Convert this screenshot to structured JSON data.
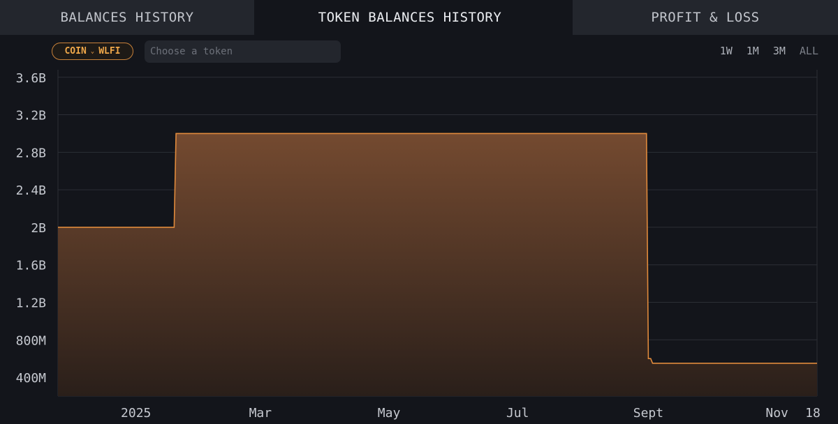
{
  "tabs": [
    {
      "label": "BALANCES HISTORY",
      "active": false
    },
    {
      "label": "TOKEN BALANCES HISTORY",
      "active": true
    },
    {
      "label": "PROFIT & LOSS",
      "active": false
    }
  ],
  "filter": {
    "token_pill": "COIN",
    "token_selected": "WLFI",
    "search_placeholder": "Choose a token"
  },
  "time_ranges": [
    "1W",
    "1M",
    "3M",
    "ALL"
  ],
  "colors": {
    "accent": "#e08a3c",
    "fill_top": "#744a30",
    "fill_bottom": "#2a1f1a",
    "grid": "#2c2f36",
    "background": "#13151b"
  },
  "chart_data": {
    "type": "area",
    "title": "",
    "xlabel": "",
    "ylabel": "",
    "x_tick_labels": [
      "2025",
      "Mar",
      "May",
      "Jul",
      "Sept",
      "Nov",
      "18"
    ],
    "y_tick_labels": [
      "400M",
      "800M",
      "1.2B",
      "1.6B",
      "2B",
      "2.4B",
      "2.8B",
      "3.2B",
      "3.6B"
    ],
    "y_tick_values": [
      400000000,
      800000000,
      1200000000,
      1600000000,
      2000000000,
      2400000000,
      2800000000,
      3200000000,
      3600000000
    ],
    "ylim": [
      200000000,
      3680000000
    ],
    "xlim": [
      "2024-11-25",
      "2025-11-20"
    ],
    "x_tick_dates": [
      "2025-01-01",
      "2025-03-01",
      "2025-05-01",
      "2025-07-01",
      "2025-09-01",
      "2025-11-01",
      "2025-11-18"
    ],
    "grid": true,
    "series": [
      {
        "step": true,
        "points": [
          {
            "x": "2024-11-25",
            "y": 2000000000
          },
          {
            "x": "2025-01-20",
            "y": 3000000000
          },
          {
            "x": "2025-09-01",
            "y": 600000000
          },
          {
            "x": "2025-09-03",
            "y": 550000000
          },
          {
            "x": "2025-11-20",
            "y": 550000000
          }
        ]
      }
    ]
  }
}
